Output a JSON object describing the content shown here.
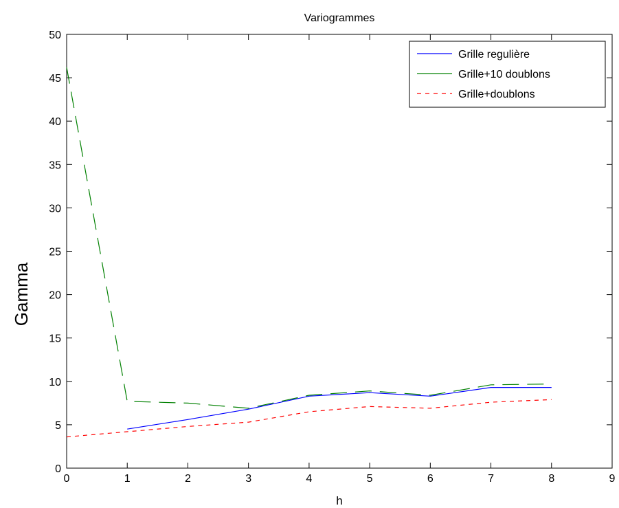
{
  "chart_data": {
    "type": "line",
    "title": "Variogrammes",
    "xlabel": "h",
    "ylabel": "Gamma",
    "xlim": [
      0,
      9
    ],
    "ylim": [
      0,
      50
    ],
    "xticks": [
      0,
      1,
      2,
      3,
      4,
      5,
      6,
      7,
      8,
      9
    ],
    "yticks": [
      0,
      5,
      10,
      15,
      20,
      25,
      30,
      35,
      40,
      45,
      50
    ],
    "grid": false,
    "legend_position": "top-right",
    "series": [
      {
        "name": "Grille regulière",
        "color": "#0000ff",
        "style": "solid",
        "x": [
          1,
          2,
          3,
          4,
          5,
          6,
          7,
          8
        ],
        "y": [
          4.5,
          5.6,
          6.8,
          8.3,
          8.7,
          8.3,
          9.3,
          9.3
        ]
      },
      {
        "name": "Grille+10 doublons",
        "color": "#008000",
        "style": "longdash",
        "legend_style": "solid",
        "x": [
          0,
          1,
          2,
          3,
          4,
          5,
          6,
          7,
          8
        ],
        "y": [
          46.2,
          7.7,
          7.5,
          6.9,
          8.4,
          8.9,
          8.4,
          9.6,
          9.7
        ]
      },
      {
        "name": "Grille+doublons",
        "color": "#ff0000",
        "style": "dashed",
        "x": [
          0,
          1,
          2,
          3,
          4,
          5,
          6,
          7,
          8
        ],
        "y": [
          3.6,
          4.2,
          4.8,
          5.3,
          6.5,
          7.1,
          6.9,
          7.6,
          7.9
        ]
      }
    ]
  }
}
